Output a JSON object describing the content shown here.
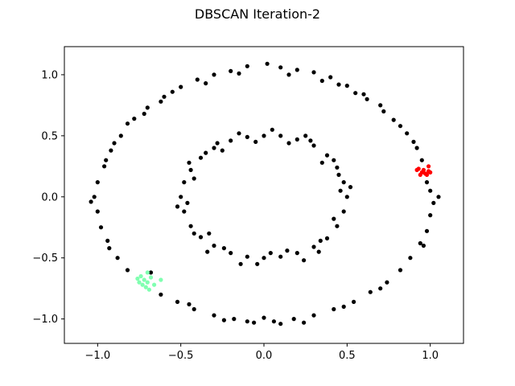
{
  "chart_data": {
    "type": "scatter",
    "title": "DBSCAN Iteration-2",
    "xlabel": "",
    "ylabel": "",
    "xlim": [
      -1.2,
      1.2
    ],
    "ylim": [
      -1.2,
      1.23
    ],
    "grid": false,
    "x_ticks": [
      -1.0,
      -0.5,
      0.0,
      0.5,
      1.0
    ],
    "x_tick_labels": [
      "−1.0",
      "−0.5",
      "0.0",
      "0.5",
      "1.0"
    ],
    "y_ticks": [
      -1.0,
      -0.5,
      0.0,
      0.5,
      1.0
    ],
    "y_tick_labels": [
      "−1.0",
      "−0.5",
      "0.0",
      "0.5",
      "1.0"
    ],
    "series": [
      {
        "color": "#000000",
        "points": [
          [
            0.02,
            1.09
          ],
          [
            0.1,
            1.06
          ],
          [
            -0.1,
            1.07
          ],
          [
            0.2,
            1.04
          ],
          [
            -0.2,
            1.03
          ],
          [
            0.3,
            1.02
          ],
          [
            -0.3,
            1.0
          ],
          [
            0.4,
            0.98
          ],
          [
            -0.4,
            0.96
          ],
          [
            0.5,
            0.91
          ],
          [
            -0.5,
            0.9
          ],
          [
            0.6,
            0.84
          ],
          [
            -0.6,
            0.82
          ],
          [
            0.7,
            0.75
          ],
          [
            -0.7,
            0.73
          ],
          [
            0.78,
            0.63
          ],
          [
            -0.78,
            0.64
          ],
          [
            0.86,
            0.52
          ],
          [
            -0.86,
            0.5
          ],
          [
            0.92,
            0.4
          ],
          [
            -0.92,
            0.38
          ],
          [
            0.98,
            0.12
          ],
          [
            -0.96,
            0.25
          ],
          [
            1.0,
            0.05
          ],
          [
            -1.0,
            0.12
          ],
          [
            1.02,
            -0.05
          ],
          [
            -1.02,
            0.0
          ],
          [
            1.0,
            -0.15
          ],
          [
            -1.0,
            -0.12
          ],
          [
            0.98,
            -0.28
          ],
          [
            -0.98,
            -0.25
          ],
          [
            0.94,
            -0.38
          ],
          [
            -0.94,
            -0.36
          ],
          [
            0.88,
            -0.5
          ],
          [
            -0.88,
            -0.5
          ],
          [
            0.82,
            -0.6
          ],
          [
            -0.82,
            -0.6
          ],
          [
            0.74,
            -0.7
          ],
          [
            -0.62,
            -0.8
          ],
          [
            0.64,
            -0.78
          ],
          [
            -0.52,
            -0.86
          ],
          [
            0.54,
            -0.86
          ],
          [
            -0.42,
            -0.92
          ],
          [
            0.42,
            -0.92
          ],
          [
            -0.3,
            -0.97
          ],
          [
            0.3,
            -0.97
          ],
          [
            -0.18,
            -1.0
          ],
          [
            0.18,
            -1.0
          ],
          [
            -0.06,
            -1.03
          ],
          [
            0.06,
            -1.02
          ],
          [
            0.15,
            1.0
          ],
          [
            -0.15,
            1.01
          ],
          [
            0.35,
            0.95
          ],
          [
            -0.35,
            0.93
          ],
          [
            0.55,
            0.85
          ],
          [
            -0.55,
            0.86
          ],
          [
            0.72,
            0.7
          ],
          [
            -0.72,
            0.68
          ],
          [
            0.9,
            0.45
          ],
          [
            -0.9,
            0.44
          ],
          [
            0.95,
            0.3
          ],
          [
            -0.95,
            0.3
          ],
          [
            -1.04,
            -0.04
          ],
          [
            1.05,
            0.0
          ],
          [
            0.96,
            -0.4
          ],
          [
            -0.93,
            -0.42
          ],
          [
            0.7,
            -0.75
          ],
          [
            -0.68,
            -0.62
          ],
          [
            0.48,
            -0.9
          ],
          [
            -0.45,
            -0.88
          ],
          [
            0.24,
            -1.03
          ],
          [
            -0.24,
            -1.01
          ],
          [
            0.0,
            -0.99
          ],
          [
            0.1,
            -1.04
          ],
          [
            -0.1,
            -1.02
          ],
          [
            0.62,
            0.8
          ],
          [
            -0.62,
            0.78
          ],
          [
            0.82,
            0.58
          ],
          [
            -0.82,
            0.6
          ],
          [
            0.45,
            0.92
          ],
          [
            0.0,
            0.5
          ],
          [
            0.1,
            0.5
          ],
          [
            -0.1,
            0.49
          ],
          [
            0.2,
            0.47
          ],
          [
            -0.2,
            0.46
          ],
          [
            0.3,
            0.42
          ],
          [
            -0.3,
            0.4
          ],
          [
            0.38,
            0.34
          ],
          [
            -0.38,
            0.32
          ],
          [
            0.44,
            0.24
          ],
          [
            -0.44,
            0.22
          ],
          [
            0.48,
            0.12
          ],
          [
            -0.48,
            0.12
          ],
          [
            0.5,
            0.0
          ],
          [
            -0.5,
            0.0
          ],
          [
            0.48,
            -0.12
          ],
          [
            -0.48,
            -0.12
          ],
          [
            0.44,
            -0.24
          ],
          [
            -0.44,
            -0.24
          ],
          [
            0.38,
            -0.34
          ],
          [
            -0.38,
            -0.33
          ],
          [
            0.3,
            -0.41
          ],
          [
            -0.3,
            -0.4
          ],
          [
            0.2,
            -0.46
          ],
          [
            -0.2,
            -0.46
          ],
          [
            0.1,
            -0.49
          ],
          [
            -0.1,
            -0.49
          ],
          [
            0.0,
            -0.5
          ],
          [
            0.05,
            0.55
          ],
          [
            -0.05,
            0.45
          ],
          [
            0.15,
            0.44
          ],
          [
            -0.15,
            0.52
          ],
          [
            0.25,
            0.5
          ],
          [
            -0.25,
            0.38
          ],
          [
            0.35,
            0.28
          ],
          [
            -0.35,
            0.36
          ],
          [
            0.42,
            0.3
          ],
          [
            -0.42,
            0.15
          ],
          [
            0.46,
            0.05
          ],
          [
            -0.46,
            -0.05
          ],
          [
            0.42,
            -0.18
          ],
          [
            -0.42,
            -0.3
          ],
          [
            0.34,
            -0.36
          ],
          [
            -0.34,
            -0.45
          ],
          [
            0.24,
            -0.52
          ],
          [
            -0.24,
            -0.42
          ],
          [
            0.14,
            -0.44
          ],
          [
            -0.14,
            -0.55
          ],
          [
            0.04,
            -0.46
          ],
          [
            -0.04,
            -0.55
          ],
          [
            0.52,
            0.08
          ],
          [
            -0.52,
            -0.08
          ],
          [
            0.45,
            0.18
          ],
          [
            -0.45,
            0.28
          ],
          [
            0.28,
            0.46
          ],
          [
            -0.28,
            0.44
          ],
          [
            0.33,
            -0.45
          ],
          [
            -0.33,
            -0.3
          ]
        ]
      },
      {
        "color": "#ff0000",
        "points": [
          [
            0.96,
            0.22
          ],
          [
            0.98,
            0.18
          ],
          [
            0.95,
            0.2
          ],
          [
            0.99,
            0.25
          ],
          [
            0.97,
            0.19
          ],
          [
            0.93,
            0.23
          ],
          [
            0.94,
            0.18
          ],
          [
            0.99,
            0.21
          ],
          [
            1.0,
            0.2
          ],
          [
            0.92,
            0.22
          ]
        ]
      },
      {
        "color": "#80ffb0",
        "points": [
          [
            -0.74,
            -0.65
          ],
          [
            -0.72,
            -0.68
          ],
          [
            -0.7,
            -0.7
          ],
          [
            -0.68,
            -0.66
          ],
          [
            -0.71,
            -0.74
          ],
          [
            -0.75,
            -0.7
          ],
          [
            -0.66,
            -0.72
          ],
          [
            -0.7,
            -0.62
          ],
          [
            -0.62,
            -0.68
          ],
          [
            -0.73,
            -0.72
          ],
          [
            -0.69,
            -0.76
          ],
          [
            -0.76,
            -0.67
          ]
        ]
      }
    ]
  }
}
